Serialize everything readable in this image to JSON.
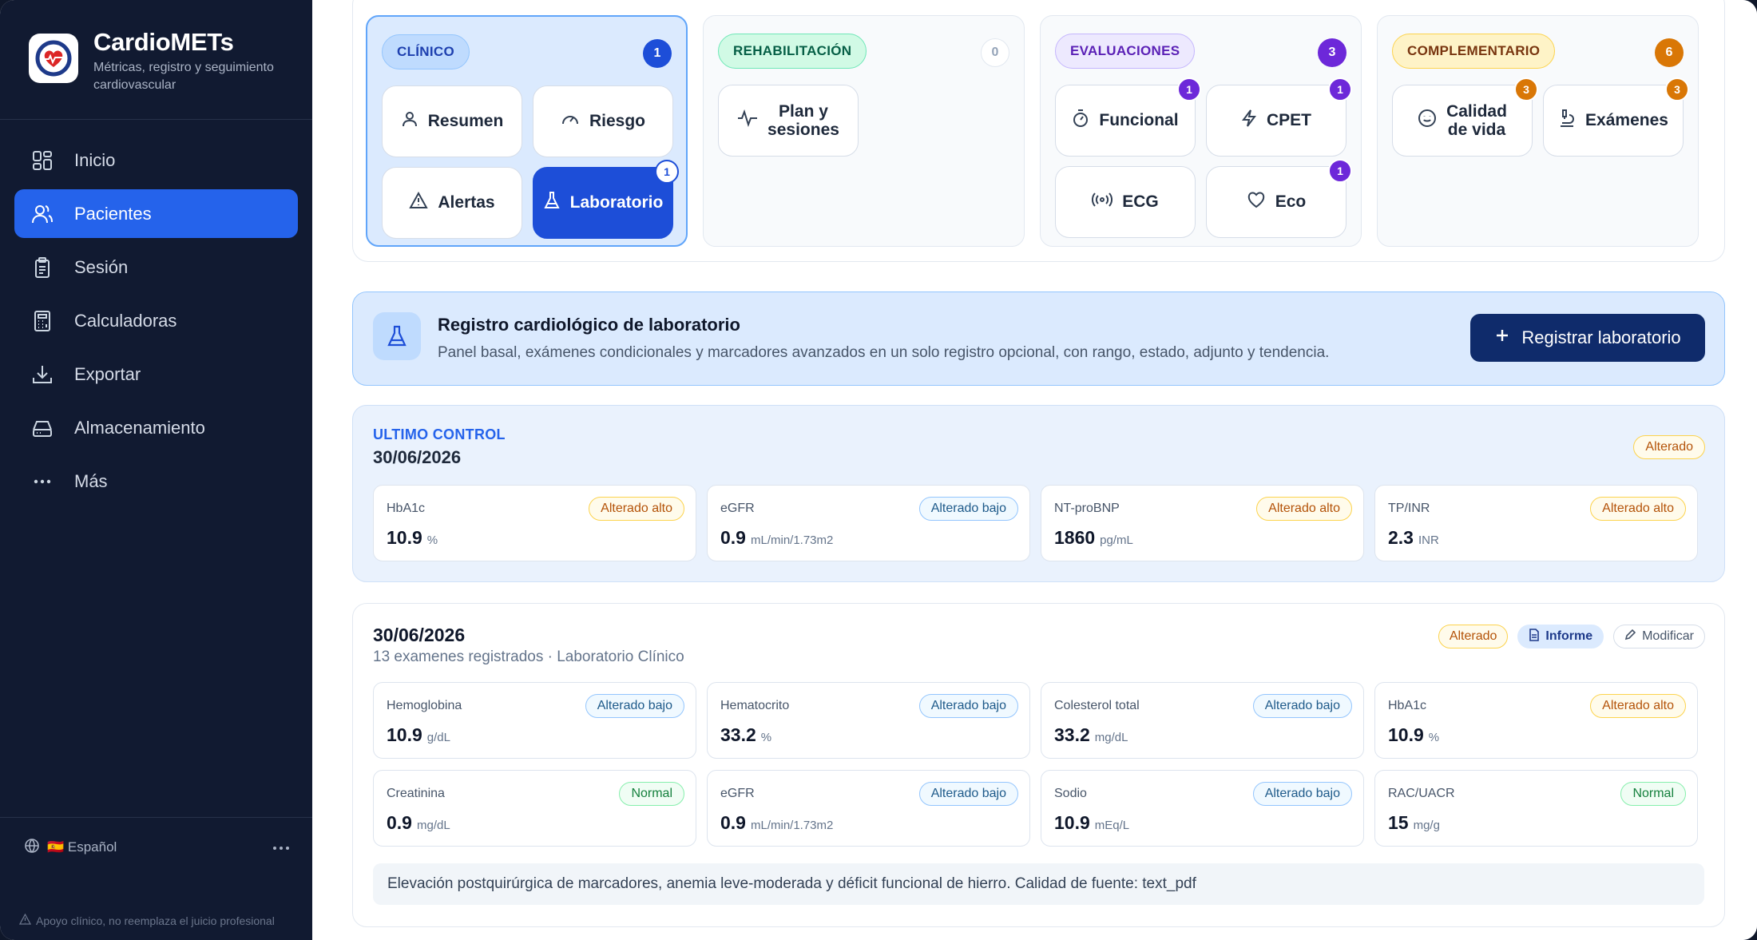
{
  "app": {
    "title": "CardioMETs",
    "subtitle": "Métricas, registro y seguimiento cardiovascular"
  },
  "sidebar": {
    "items": [
      {
        "label": "Inicio",
        "icon": "grid-icon"
      },
      {
        "label": "Pacientes",
        "icon": "users-icon",
        "active": true
      },
      {
        "label": "Sesión",
        "icon": "clipboard-icon"
      },
      {
        "label": "Calculadoras",
        "icon": "calculator-icon"
      },
      {
        "label": "Exportar",
        "icon": "download-icon"
      },
      {
        "label": "Almacenamiento",
        "icon": "drive-icon"
      },
      {
        "label": "Más",
        "icon": "more-icon"
      }
    ],
    "language": "🇪🇸 Español",
    "disclaimer": "Apoyo clínico, no reemplaza el juicio profesional"
  },
  "categories": {
    "clinico": {
      "label": "CLÍNICO",
      "count": "1",
      "buttons": [
        "Resumen",
        "Riesgo",
        "Alertas",
        "Laboratorio"
      ],
      "lab_badge": "1"
    },
    "rehabilitacion": {
      "label": "REHABILITACIÓN",
      "count": "0",
      "buttons": [
        "Plan y",
        "sesiones"
      ]
    },
    "evaluaciones": {
      "label": "EVALUACIONES",
      "count": "3",
      "buttons": [
        "Funcional",
        "CPET",
        "ECG",
        "Eco"
      ],
      "badges": [
        "1",
        "1",
        "1"
      ]
    },
    "complementario": {
      "label": "COMPLEMENTARIO",
      "count": "6",
      "buttons": [
        "Calidad",
        "de vida",
        "Exámenes"
      ],
      "badges": [
        "3",
        "3"
      ]
    }
  },
  "register": {
    "title": "Registro cardiológico de laboratorio",
    "subtitle": "Panel basal, exámenes condicionales y marcadores avanzados en un solo registro opcional, con rango, estado, adjunto y tendencia.",
    "button": "Registrar laboratorio"
  },
  "last_control": {
    "label": "ULTIMO CONTROL",
    "date": "30/06/2026",
    "status": "Alterado",
    "metrics": [
      {
        "name": "HbA1c",
        "value": "10.9",
        "unit": "%",
        "status": "Alterado alto"
      },
      {
        "name": "eGFR",
        "value": "0.9",
        "unit": "mL/min/1.73m2",
        "status": "Alterado bajo"
      },
      {
        "name": "NT-proBNP",
        "value": "1860",
        "unit": "pg/mL",
        "status": "Alterado alto"
      },
      {
        "name": "TP/INR",
        "value": "2.3",
        "unit": "INR",
        "status": "Alterado alto"
      }
    ]
  },
  "record": {
    "date": "30/06/2026",
    "subtitle": "13 examenes registrados · Laboratorio Clínico",
    "status": "Alterado",
    "report": "Informe",
    "edit": "Modificar",
    "metrics": [
      {
        "name": "Hemoglobina",
        "value": "10.9",
        "unit": "g/dL",
        "status": "Alterado bajo"
      },
      {
        "name": "Hematocrito",
        "value": "33.2",
        "unit": "%",
        "status": "Alterado bajo"
      },
      {
        "name": "Colesterol total",
        "value": "33.2",
        "unit": "mg/dL",
        "status": "Alterado bajo"
      },
      {
        "name": "HbA1c",
        "value": "10.9",
        "unit": "%",
        "status": "Alterado alto"
      },
      {
        "name": "Creatinina",
        "value": "0.9",
        "unit": "mg/dL",
        "status": "Normal"
      },
      {
        "name": "eGFR",
        "value": "0.9",
        "unit": "mL/min/1.73m2",
        "status": "Alterado bajo"
      },
      {
        "name": "Sodio",
        "value": "10.9",
        "unit": "mEq/L",
        "status": "Alterado bajo"
      },
      {
        "name": "RAC/UACR",
        "value": "15",
        "unit": "mg/g",
        "status": "Normal"
      }
    ],
    "note": "Elevación postquirúrgica de marcadores, anemia leve-moderada y déficit funcional de hierro. Calidad de fuente: text_pdf"
  },
  "colors": {
    "sidebar": "#111a31",
    "accent": "#2563eb",
    "primary_button": "#0f2b6b",
    "clinico": "#1d4ed8",
    "evaluaciones": "#6d28d9",
    "complementario": "#d97706"
  }
}
